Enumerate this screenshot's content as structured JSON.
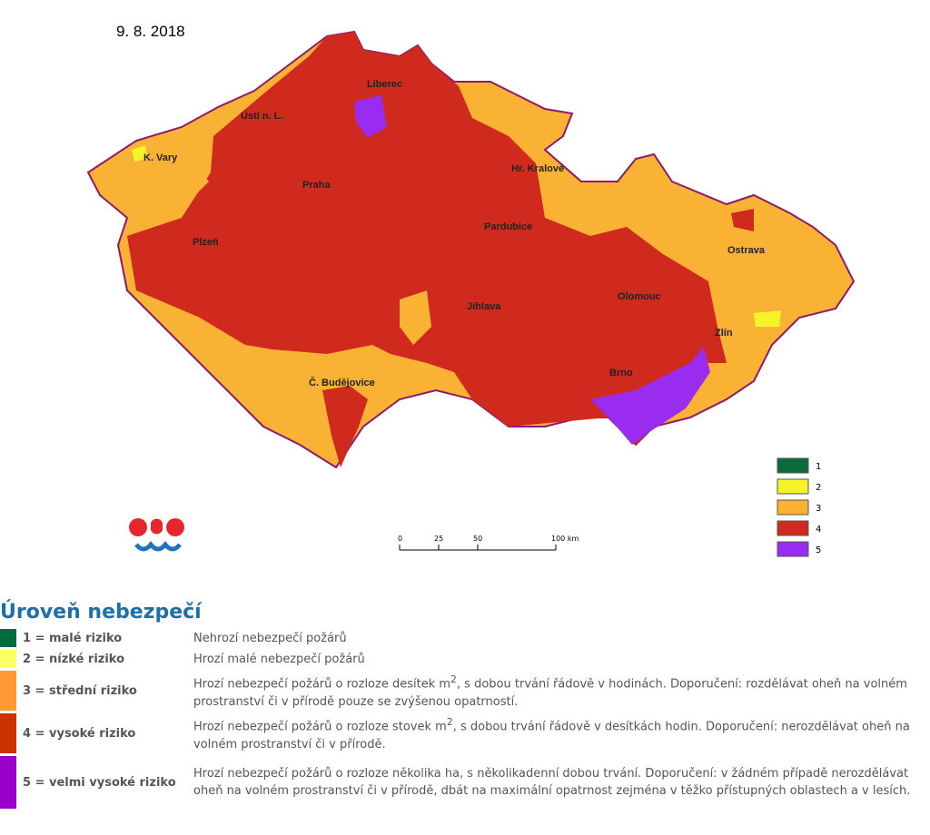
{
  "date": "9. 8. 2018",
  "cities": [
    "Liberec",
    "Ústí n. L.",
    "K. Vary",
    "Praha",
    "Hr. Kralové",
    "Pardubice",
    "Plzeň",
    "Ostrava",
    "Olomouc",
    "Jihlava",
    "Zlín",
    "Brno",
    "Č. Budějovice"
  ],
  "map_legend": [
    {
      "label": "1",
      "color": "#0b6b3a"
    },
    {
      "label": "2",
      "color": "#f7f32a"
    },
    {
      "label": "3",
      "color": "#f9b233"
    },
    {
      "label": "4",
      "color": "#d02a1e"
    },
    {
      "label": "5",
      "color": "#9a2cf0"
    }
  ],
  "scale_labels": [
    "0",
    "25",
    "50",
    "100 km"
  ],
  "levels": {
    "title": "Úroveň nebezpečí",
    "rows": [
      {
        "level": "1 = malé riziko",
        "color": "#006b3c",
        "description": [
          "Nehrozí nebezpečí požárů"
        ]
      },
      {
        "level": "2 = nízké riziko",
        "color": "#ffff66",
        "description": [
          "Hrozí malé nebezpečí požárů"
        ]
      },
      {
        "level": "3 = střední riziko",
        "color": "#ff9933",
        "description": [
          "Hrozí nebezpečí požárů o rozloze desítek m",
          "2",
          ", s dobou trvání řádově v hodinách. Doporučení: rozdělávat oheň na volném prostranství či v přírodě pouze se zvýšenou opatrností."
        ]
      },
      {
        "level": "4 = vysoké riziko",
        "color": "#cc3300",
        "description": [
          "Hrozí nebezpečí požárů o rozloze stovek m",
          "2",
          ", s dobou trvání řádově v desítkách hodin. Doporučení: nerozdělávat oheň na volném prostranství či v přírodě."
        ]
      },
      {
        "level": "5 = velmi vysoké riziko",
        "color": "#9900cc",
        "description": [
          "Hrozí nebezpečí požárů o rozloze několika ha, s několikadenní dobou trvání. Doporučení: v žádném případě nerozdělávat oheň na volném prostranství či v přírodě, dbát na maximální opatrnost zejména v těžko přístupných oblastech a v lesích."
        ]
      }
    ]
  }
}
